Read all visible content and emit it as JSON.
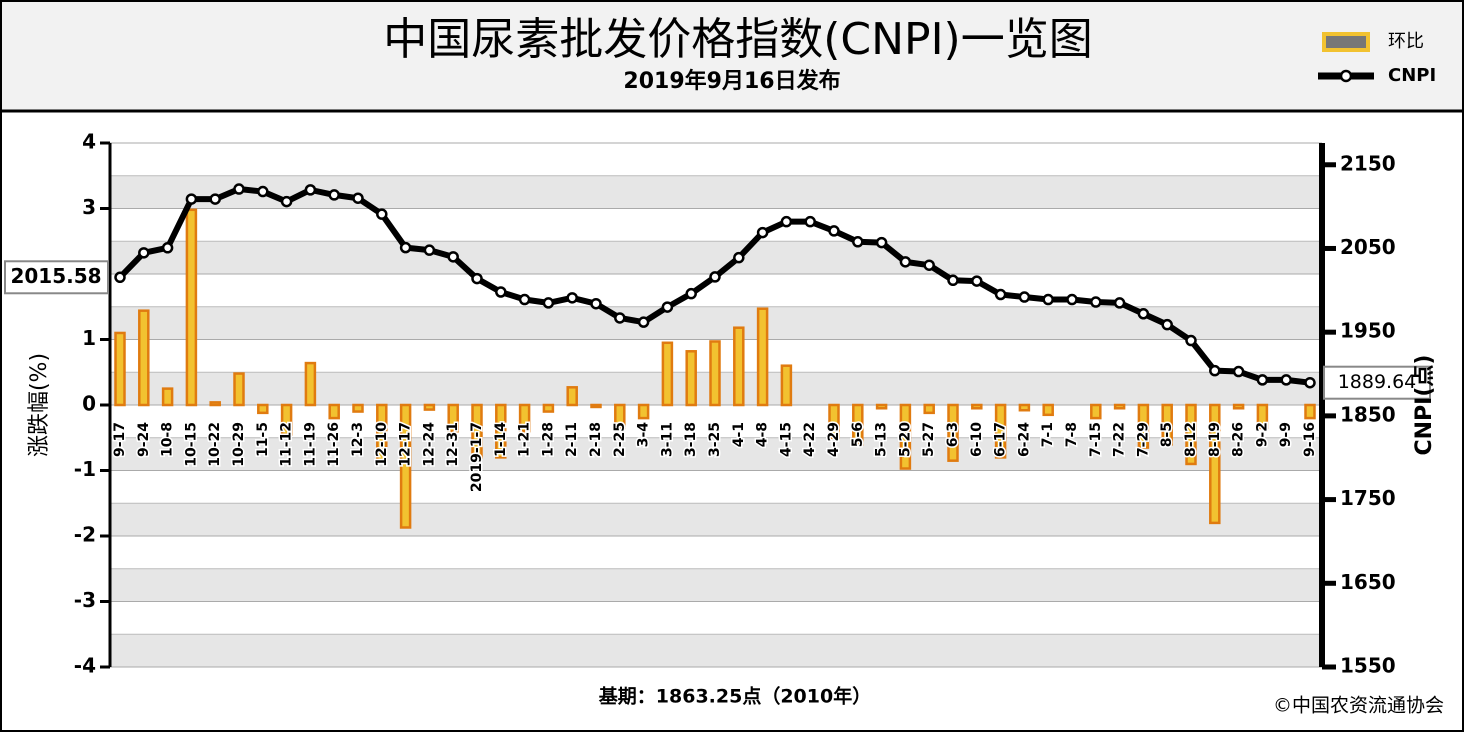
{
  "chart_data": {
    "type": "bar",
    "title": "中国尿素批发价格指数(CNPI)一览图",
    "subtitle": "2019年9月16日发布",
    "y_label": "涨跌幅(%)",
    "y2_label": "CNPI(点)",
    "base_note": "基期：1863.25点（2010年）",
    "source": "©中国农资流通协会",
    "categories": [
      "9-17",
      "9-24",
      "10-8",
      "10-15",
      "10-22",
      "10-29",
      "11-5",
      "11-12",
      "11-19",
      "11-26",
      "12-3",
      "12-10",
      "12-17",
      "12-24",
      "12-31",
      "2019-1-7",
      "1-14",
      "1-21",
      "1-28",
      "2-11",
      "2-18",
      "2-25",
      "3-4",
      "3-11",
      "3-18",
      "3-25",
      "4-1",
      "4-8",
      "4-15",
      "4-22",
      "4-29",
      "5-6",
      "5-13",
      "5-20",
      "5-27",
      "6-3",
      "6-10",
      "6-17",
      "6-24",
      "7-1",
      "7-8",
      "7-15",
      "7-22",
      "7-29",
      "8-5",
      "8-12",
      "8-19",
      "8-26",
      "9-2",
      "9-9",
      "9-16"
    ],
    "series": [
      {
        "name": "环比",
        "type": "bar",
        "color": "#f2c230",
        "values": [
          1.1,
          1.44,
          0.25,
          2.98,
          0.04,
          0.48,
          -0.12,
          -0.45,
          0.64,
          -0.2,
          -0.1,
          -0.85,
          -1.87,
          -0.07,
          -0.4,
          -0.8,
          -0.8,
          -0.4,
          -0.1,
          0.27,
          -0.03,
          -0.35,
          -0.2,
          0.95,
          0.82,
          0.97,
          1.18,
          1.47,
          0.6,
          0,
          -0.5,
          -0.6,
          -0.05,
          -0.97,
          -0.12,
          -0.85,
          -0.05,
          -0.8,
          -0.08,
          -0.15,
          0,
          -0.2,
          -0.05,
          -0.65,
          -0.6,
          -0.9,
          -1.8,
          -0.05,
          -0.35,
          0,
          -0.2
        ]
      },
      {
        "name": "CNPI",
        "type": "line",
        "axis": "y2",
        "color": "#000000",
        "values": [
          2015.58,
          2044.8,
          2050.8,
          2109,
          2109,
          2121,
          2118,
          2106,
          2120,
          2114,
          2110,
          2091,
          2051,
          2048,
          2040,
          2014,
          1998,
          1989,
          1985,
          1991,
          1984,
          1967,
          1962,
          1980,
          1996,
          2016,
          2039,
          2069,
          2082,
          2082,
          2071,
          2058,
          2057,
          2034,
          2030,
          2012,
          2011,
          1995,
          1992,
          1989,
          1989,
          1986,
          1985,
          1972,
          1959,
          1940,
          1904,
          1903,
          1893,
          1893,
          1889.64
        ]
      }
    ],
    "ylim": [
      -4,
      4
    ],
    "yticks": [
      -4,
      -3,
      -2,
      -1,
      0,
      1,
      2,
      3,
      4
    ],
    "y2lim": [
      1550,
      2176
    ],
    "y2ticks": [
      1550,
      1650,
      1750,
      1850,
      1950,
      2050,
      2150
    ],
    "grid": true
  }
}
